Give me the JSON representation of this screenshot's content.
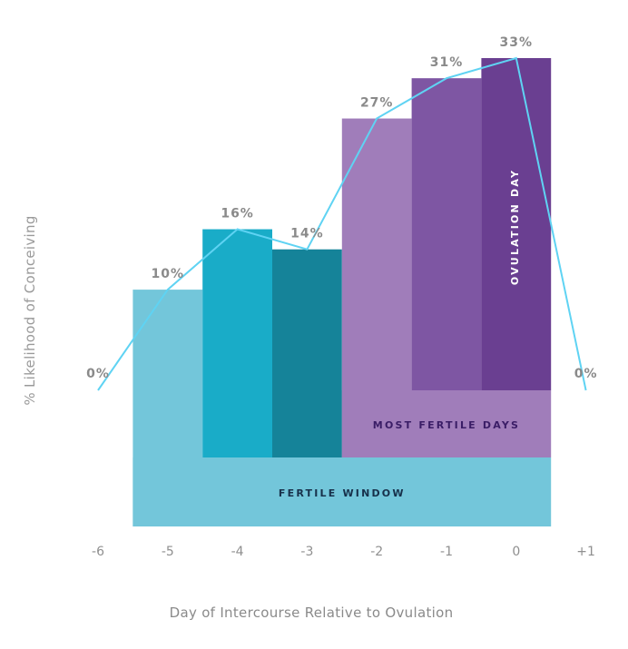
{
  "chart_data": {
    "type": "bar",
    "title": "",
    "xlabel": "Day of Intercourse Relative to Ovulation",
    "ylabel": "% Likelihood of Conceiving",
    "ylim": [
      0,
      33
    ],
    "x": [
      "-6",
      "-5",
      "-4",
      "-3",
      "-2",
      "-1",
      "0",
      "+1"
    ],
    "series": [
      {
        "values": [
          0,
          10,
          16,
          14,
          27,
          31,
          33,
          0
        ]
      }
    ],
    "data_labels": [
      "0%",
      "10%",
      "16%",
      "14%",
      "27%",
      "31%",
      "33%",
      "0%"
    ],
    "bar_colors": [
      "",
      "#73c6da",
      "#19acc8",
      "#158399",
      "#a07dba",
      "#7e56a3",
      "#6a3f91",
      ""
    ],
    "line_color": "#5fd3f3",
    "regions": [
      {
        "label": "FERTILE WINDOW",
        "from": "-5",
        "to": "0",
        "color": "#73c6da",
        "text_color": "#17304a"
      },
      {
        "label": "MOST FERTILE DAYS",
        "from": "-2",
        "to": "0",
        "color": "#a07dba",
        "text_color": "#3a1d66"
      },
      {
        "label": "OVULATION DAY",
        "from": "0",
        "to": "0",
        "color": "#6a3f91",
        "text_color": "#ffffff"
      }
    ],
    "grid": false,
    "legend": "none"
  }
}
